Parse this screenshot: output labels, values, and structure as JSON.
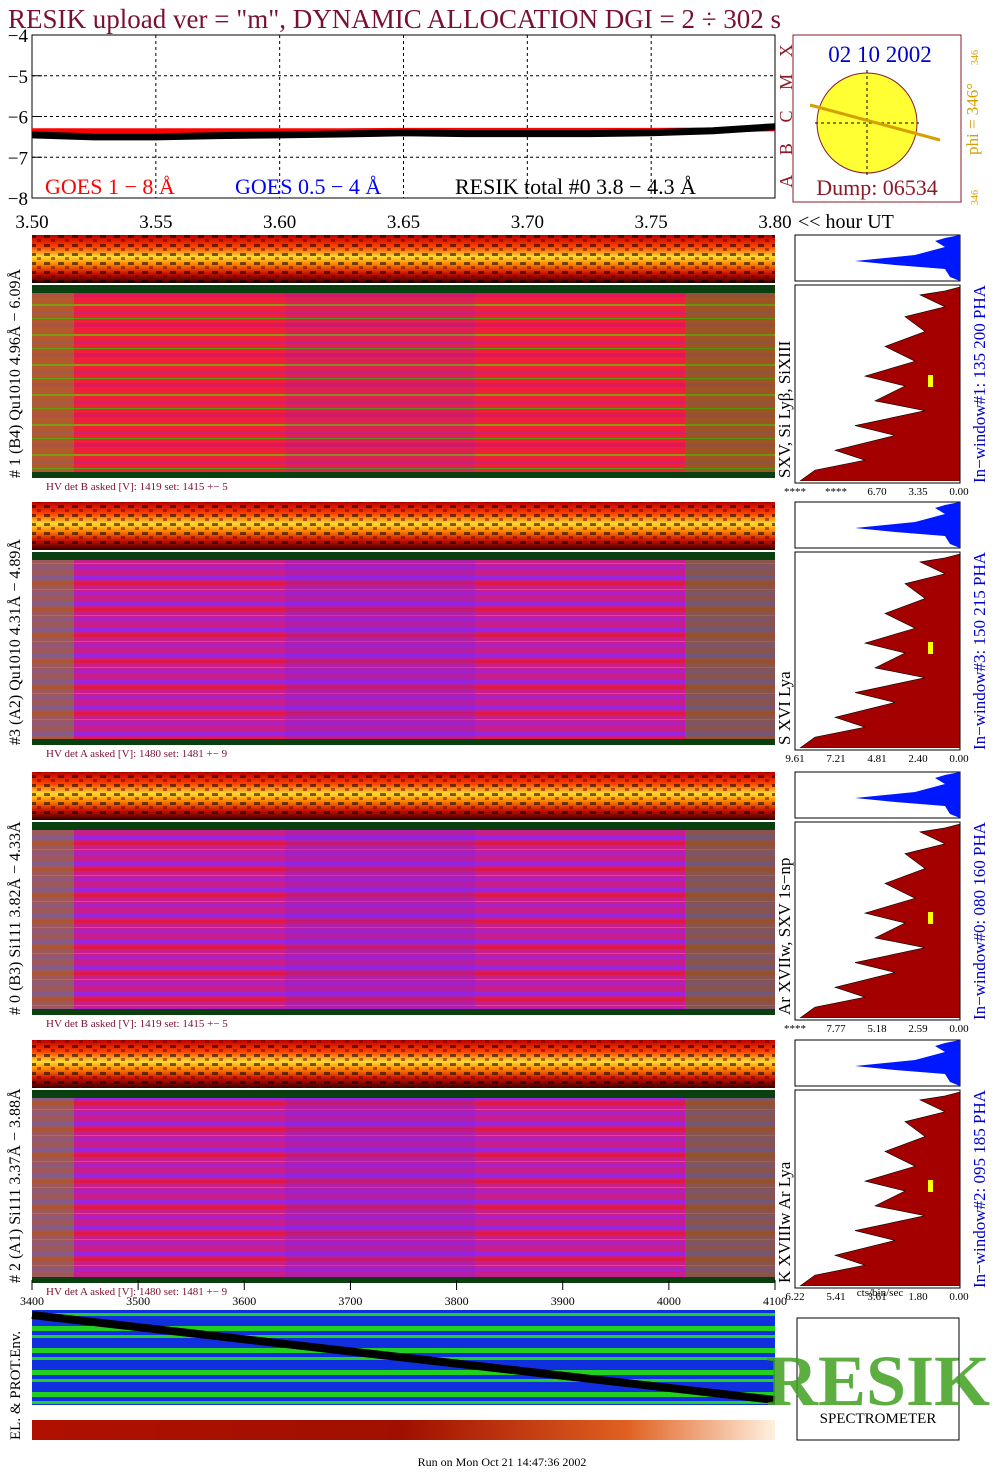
{
  "title": "RESIK upload ver = \"m\", DYNAMIC ALLOCATION  DGI =   2 ÷ 302 s",
  "chart_data": {
    "type": "line",
    "x": [
      3.5,
      3.525,
      3.55,
      3.575,
      3.6,
      3.625,
      3.65,
      3.675,
      3.7,
      3.725,
      3.75,
      3.775,
      3.8
    ],
    "series": [
      {
        "name": "GOES 1 − 8 Å",
        "color": "#ff0000",
        "values": [
          -6.35,
          -6.35,
          -6.35,
          -6.35,
          -6.35,
          -6.35,
          -6.34,
          -6.34,
          -6.34,
          -6.34,
          -6.34,
          -6.33,
          -6.3
        ]
      },
      {
        "name": "GOES 0.5 − 4 Å",
        "color": "#0000ff",
        "values": [
          null,
          null,
          null,
          null,
          null,
          null,
          null,
          null,
          null,
          null,
          null,
          null,
          null
        ]
      },
      {
        "name": "RESIK total #0  3.8 − 4.3 Å",
        "color": "#000000",
        "values": [
          -6.45,
          -6.5,
          -6.5,
          -6.47,
          -6.45,
          -6.43,
          -6.4,
          -6.42,
          -6.42,
          -6.42,
          -6.4,
          -6.35,
          -6.25
        ]
      }
    ],
    "xlim": [
      3.5,
      3.8
    ],
    "xticks": [
      {
        "value": 3.5,
        "label": "3.50"
      },
      3.55,
      {
        "value": 3.6,
        "label": "3.60"
      },
      3.65,
      {
        "value": 3.7,
        "label": "3.70"
      },
      3.75,
      {
        "value": 3.8,
        "label": "3.80"
      }
    ],
    "xlabel": "<< hour UT",
    "ylim": [
      -8,
      -4
    ],
    "yticks": [
      {
        "value": -8,
        "label": "−8"
      },
      {
        "value": -7,
        "label": "−7"
      },
      {
        "value": -6,
        "label": "−6"
      },
      {
        "value": -5,
        "label": "−5"
      },
      {
        "value": -4,
        "label": "−4"
      }
    ],
    "class_labels": [
      "A",
      "B",
      "C",
      "M",
      "X"
    ],
    "grid": true
  },
  "sun": {
    "date": "02 10 2002",
    "phi": "phi = 346°",
    "phi_small": "346",
    "phi_small2": "346",
    "dump": "Dump: 06534"
  },
  "panels": [
    {
      "detector_label": "# 1 (B4) Qu1010 4.96Å − 6.09Å",
      "line_label": "SXV, Si Lyβ, SiXIII",
      "hv_text": "HV det B asked [V]:  1419 set:  1415  +−   5",
      "window_label": "In−window#1:  135 200 PHA",
      "scale_labels": [
        "****",
        "****",
        "6.70",
        "3.35",
        "0.00"
      ]
    },
    {
      "detector_label": "#3 (A2) Qu1010  4.31Å − 4.89Å",
      "line_label": "S XVI Lya",
      "hv_text": "HV det A asked [V]:  1480 set:  1481  +−   9",
      "window_label": "In−window#3:  150 215 PHA",
      "scale_labels": [
        "9.61",
        "7.21",
        "4.81",
        "2.40",
        "0.00"
      ]
    },
    {
      "detector_label": "# 0 (B3) Si111  3.82Å − 4.33Å",
      "line_label": "Ar XVIIw,  SXV 1s−np",
      "hv_text": "HV det B asked [V]:  1419 set:  1415  +−   5",
      "window_label": "In−window#0:  080 160 PHA",
      "scale_labels": [
        "****",
        "7.77",
        "5.18",
        "2.59",
        "0.00"
      ]
    },
    {
      "detector_label": "# 2 (A1) Si111  3.37Å − 3.88Å",
      "line_label": "K XVIIIw  Ar Lya",
      "hv_text": "HV det A asked [V]:  1480 set:  1481  +−   9",
      "window_label": "In−window#2:  095 185 PHA",
      "scale_labels": [
        "6.22",
        "5.41",
        "3.61",
        "1.80",
        "0.00"
      ]
    }
  ],
  "bottom": {
    "ticks": [
      3400,
      3500,
      3600,
      3700,
      3800,
      3900,
      4000,
      4100
    ],
    "label": "EL. & PROT.Env.",
    "unit_label": "cts/bin/sec"
  },
  "logo": {
    "text": "SPECTROMETER",
    "name": "RESIK"
  },
  "footer": "Run on Mon Oct 21 14:47:36 2002"
}
